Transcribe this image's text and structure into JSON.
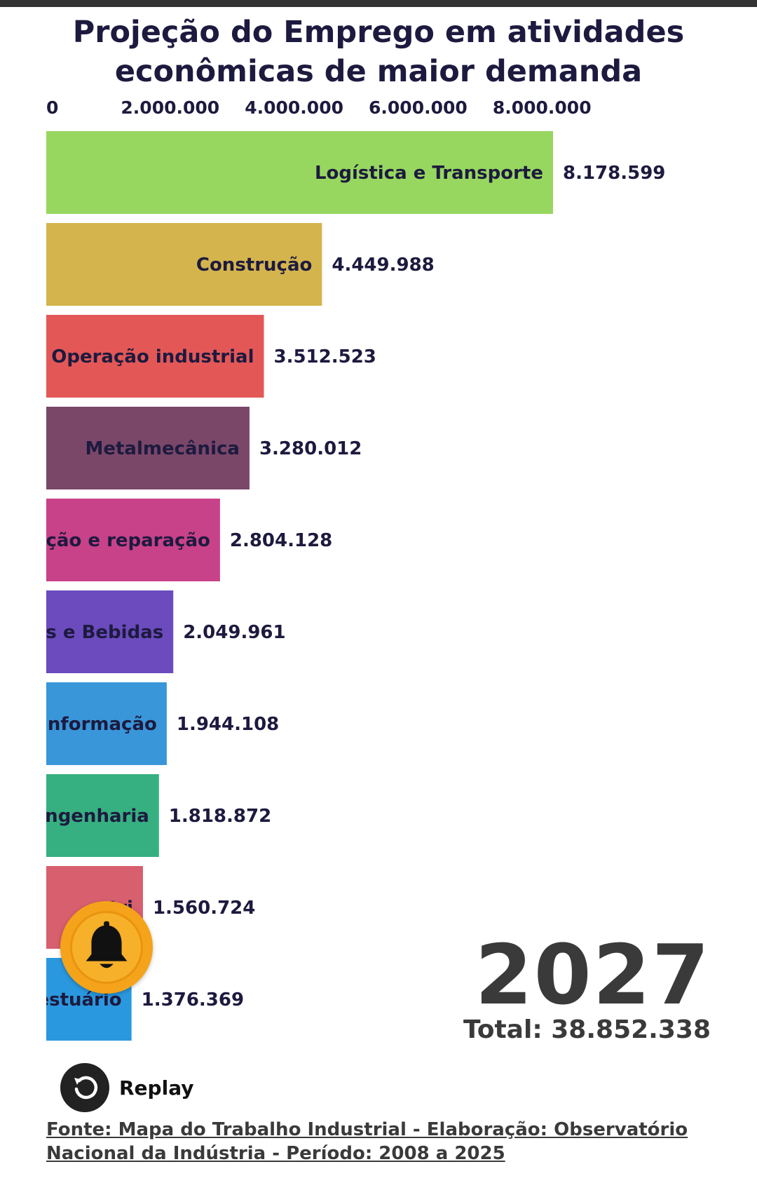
{
  "title": {
    "line1": "Projeção do Emprego em atividades",
    "line2": "econômicas de maior demanda"
  },
  "chart_data": {
    "type": "bar",
    "orientation": "horizontal",
    "x_ticks": [
      "0",
      "2.000.000",
      "4.000.000",
      "6.000.000",
      "8.000.000"
    ],
    "x_tick_values": [
      0,
      2000000,
      4000000,
      6000000,
      8000000
    ],
    "categories": [
      "Logística e Transporte",
      "Construção",
      "Operação industrial",
      "Metalmecânica",
      "nção e reparação",
      "os e Bebidas",
      "Informação",
      "engenharia",
      "stri",
      "estuário"
    ],
    "values": [
      8178599,
      4449988,
      3512523,
      3280012,
      2804128,
      2049961,
      1944108,
      1818872,
      1560724,
      1376369
    ],
    "value_labels": [
      "8.178.599",
      "4.449.988",
      "3.512.523",
      "3.280.012",
      "2.804.128",
      "2.049.961",
      "1.944.108",
      "1.818.872",
      "1.560.724",
      "1.376.369"
    ],
    "colors": [
      "#97d75f",
      "#d4b44d",
      "#e35857",
      "#7a4769",
      "#c84289",
      "#6b4bbd",
      "#3896d9",
      "#36b080",
      "#d85f6d",
      "#2a98de"
    ],
    "xlim": [
      0,
      8178599
    ],
    "grid": false,
    "legend": "none"
  },
  "year": "2027",
  "total": "Total: 38.852.338",
  "replay": {
    "label": "Replay"
  },
  "bell": {
    "icon": "bell-icon"
  },
  "source": {
    "line1": "Fonte: Mapa do Trabalho Industrial - Elaboração: Observatório",
    "line2": "Nacional da Indústria - Período: 2008 a 2025"
  }
}
